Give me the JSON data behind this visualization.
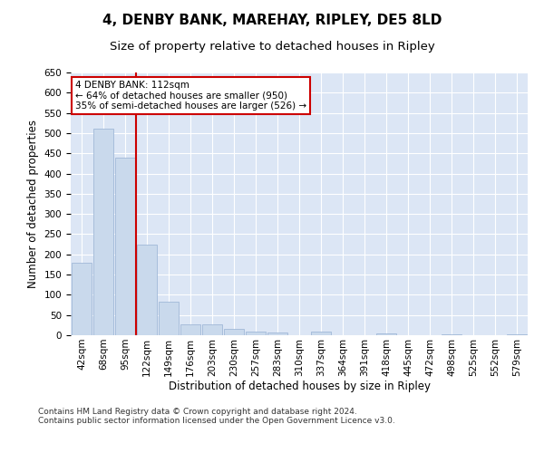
{
  "title": "4, DENBY BANK, MAREHAY, RIPLEY, DE5 8LD",
  "subtitle": "Size of property relative to detached houses in Ripley",
  "xlabel": "Distribution of detached houses by size in Ripley",
  "ylabel": "Number of detached properties",
  "bar_labels": [
    "42sqm",
    "68sqm",
    "95sqm",
    "122sqm",
    "149sqm",
    "176sqm",
    "203sqm",
    "230sqm",
    "257sqm",
    "283sqm",
    "310sqm",
    "337sqm",
    "364sqm",
    "391sqm",
    "418sqm",
    "445sqm",
    "472sqm",
    "498sqm",
    "525sqm",
    "552sqm",
    "579sqm"
  ],
  "bar_values": [
    180,
    510,
    440,
    225,
    83,
    28,
    28,
    15,
    8,
    7,
    0,
    8,
    0,
    0,
    5,
    0,
    0,
    3,
    0,
    0,
    3
  ],
  "bar_color": "#c9d9ec",
  "bar_edge_color": "#a0b8d8",
  "vline_x": 2.5,
  "vline_color": "#cc0000",
  "ylim": [
    0,
    650
  ],
  "yticks": [
    0,
    50,
    100,
    150,
    200,
    250,
    300,
    350,
    400,
    450,
    500,
    550,
    600,
    650
  ],
  "annotation_text": "4 DENBY BANK: 112sqm\n← 64% of detached houses are smaller (950)\n35% of semi-detached houses are larger (526) →",
  "annotation_box_color": "#ffffff",
  "annotation_box_edge": "#cc0000",
  "footer_text": "Contains HM Land Registry data © Crown copyright and database right 2024.\nContains public sector information licensed under the Open Government Licence v3.0.",
  "background_color": "#dce6f5",
  "title_fontsize": 11,
  "subtitle_fontsize": 9.5,
  "tick_fontsize": 7.5,
  "ylabel_fontsize": 8.5,
  "xlabel_fontsize": 8.5,
  "annotation_fontsize": 7.5,
  "footer_fontsize": 6.5
}
